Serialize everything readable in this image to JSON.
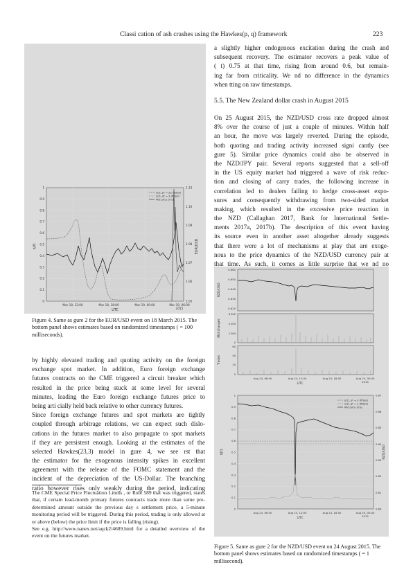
{
  "header": {
    "running_title": "Classi cation of  ash crashes using the Hawkes(p, q) framework",
    "page_number": "223"
  },
  "right_col_top_lines": [
    "a slightly higher endogenous excitation during the crash and",
    "subsequent recovery. The estimator recovers a peak value of",
    "( t)    0.75 at that time, rising from around 0.6, but remain-",
    "ing far from criticality. We  nd no difference in the dynamics",
    "when  tting on raw timestamps."
  ],
  "section_heading": "5.5.  The New Zealand dollar crash in August 2015",
  "nzd_paragraph_lines": [
    "On 25 August 2015, the NZD/USD cross rate dropped almost",
    "8% over the course of just a couple of minutes. Within half",
    "an hour, the move was largely reverted. During the episode,",
    "both quoting and trading activity increased signi cantly (see",
    "  gure  5). Similar price dynamics could also be observed in",
    "the NZD/JPY pair. Several reports suggested that a sell-off",
    "in the US equity market had triggered a wave of risk reduc-",
    "tion and closing of carry trades, the following increase in",
    "correlation led to dealers failing to hedge cross-asset expo-",
    "sures and consequently withdrawing from two-sided market",
    "making, which resulted in the excessive price reaction in",
    "the NZD (Callaghan 2017, Bank for International Settle-",
    "ments 2017a, 2017b). The description of this event having",
    "its source even in another asset altogether already suggests",
    "that there were a lot of mechanisms at play that are exoge-",
    "nous to the price dynamics of the NZD/USD currency pair at",
    "that time. As such, it comes as little surprise that we  nd no"
  ],
  "left_col_lines": [
    "by highly elevated trading and quoting activity on the foreign",
    "exchange spot market. In addition, Euro foreign exchange",
    "futures contracts on the CME triggered a circuit breaker which",
    "resulted in the price being stuck at some level for several",
    "minutes,   leading the Euro foreign exchange futures price to",
    "being arti cially held back relative to other currency futures.",
    "Since foreign exchange futures and spot markets are tightly",
    "coupled through arbitrage relations, we can expect such dislo-",
    "cations in the futures market to also propagate to spot markets",
    "if they are persistent enough. Looking at the estimates of the",
    "selected Hawkes(23,3) model in   gure   4, we see   rst that",
    "the estimator for the exogenous intensity spikes in excellent",
    "agreement with the release of the FOMC statement and the",
    "incident of the depreciation of the US-Dollar. The branching",
    "ratio however rises only weakly during the period, indicating"
  ],
  "fig4_caption": "Figure 4.  Same as  gure  2 for the EUR/USD event on 18 March 2015. The bottom panel shows estimates based on randomized timestamps (     = 100 milliseconds).",
  "fig5_caption": "Figure 5.  Same as  gure  2 for the NZD/USD event on 24 August 2015. The bottom panel shows estimates based on randomized timestamps (     = 1 millisecond).",
  "footnotes": [
    " The CME  Special Price Fluctuation Limits , or Rule 589 that was triggered, states that, if certain lead-month primary futures contracts trade more than some pre-determined amount outside the previous day s settlement price, a 5-minute monitoring period will be triggered. During this period, trading is only allowed at or above (below) the price limit if the price is falling (rising).",
    " See  e.g.  http://www.nanex.net/aqck2/4689.html  for  a  detailed overview of the event on the futures market."
  ],
  "fig4": {
    "y_left_label": "η(t)",
    "y_right_label": "EUR/USD",
    "legend": [
      "η(t), p* = 23 (fitted)",
      "η(t), q* = 3 (fitted)",
      "Mid price (rhs)"
    ],
    "y_left_ticks": [
      "1",
      "0.9",
      "0.8",
      "0.7",
      "0.6",
      "0.5",
      "0.4",
      "0.3",
      "0.2",
      "0.1",
      "0"
    ],
    "y_right_ticks": [
      "1.13",
      "1.10",
      "1.09",
      "1.08",
      "1.07",
      "1.06",
      "1.05"
    ],
    "x_ticks": [
      "Mar 18, 12:00",
      "Mar 18, 18:00",
      "Mar 19, 00:00",
      "Mar 19, 06:00"
    ],
    "x_year": "2015",
    "x_label": "UTC"
  },
  "fig5": {
    "top": {
      "y_label": "NZD/USD",
      "y_ticks": [
        "0.660",
        "0.650",
        "0.640",
        "0.630",
        "0.620"
      ]
    },
    "mid": {
      "y_label": "Mid-changes",
      "y_ticks": [
        "6 000",
        "4 000",
        "2 000",
        "0"
      ]
    },
    "low": {
      "y_label": "Trades",
      "y_ticks": [
        "60",
        "40",
        "20",
        "0"
      ]
    },
    "top_x_ticks": [
      "Aug 24, 06:00",
      "Aug 24, 12:00",
      "Aug 24, 18:00",
      "Aug 25, 00:00"
    ],
    "top_x_year": "2015",
    "top_x_label": "UTC",
    "bottom": {
      "y_left_label": "η(t)",
      "y_right_label": "NZD/USD",
      "legend": [
        "η(t), p* = 3 (fitted)",
        "η(t), q* = 1 (fitted)",
        "Mid price (rhs)"
      ],
      "y_left_ticks": [
        "1",
        "0.9",
        "0.8",
        "0.7",
        "0.6",
        "0.5",
        "0.4",
        "0.3",
        "0.2",
        "0.1",
        "0"
      ],
      "y_right_ticks": [
        "0.67",
        "0.66",
        "0.65",
        "0.64",
        "0.63",
        "0.62",
        "0.61",
        "0.60"
      ],
      "x_ticks": [
        "Aug 24, 06:00",
        "Aug 24, 12:00",
        "Aug 24, 18:00",
        "Aug 25, 00:00"
      ],
      "x_year": "2015",
      "x_label": "UTC"
    }
  }
}
